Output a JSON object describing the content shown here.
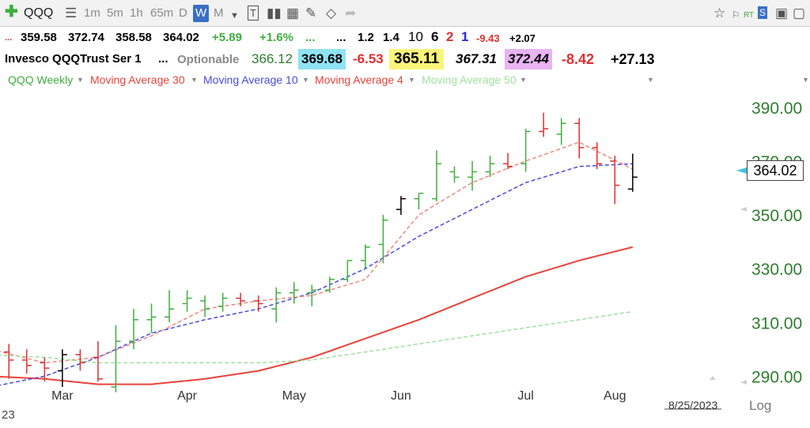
{
  "toolbar": {
    "symbol": "QQQ",
    "timeframes": [
      "1m",
      "5m",
      "1h",
      "65m",
      "D",
      "W",
      "M"
    ],
    "active_timeframe": "W"
  },
  "quote": {
    "dots": "...",
    "open": "359.58",
    "high": "372.74",
    "low": "358.58",
    "close": "364.02",
    "change": "+5.89",
    "change_pct": "+1.6%",
    "ell1": "...",
    "ell2": "...",
    "v1": "1.2",
    "v2": "1.4",
    "v3": "10",
    "v4": "6",
    "v5": "2",
    "v6": "1",
    "v7": "-9.43",
    "v8": "+2.07"
  },
  "row2": {
    "name": "Invesco QQQTrust Ser 1",
    "ell": "...",
    "optionable": "Optionable",
    "p1": "366.12",
    "p2": "369.68",
    "p3": "-6.53",
    "p4": "365.11",
    "p5": "367.31",
    "p6": "372.44",
    "p7": "-8.42",
    "p8": "+27.13"
  },
  "legend": {
    "main": "QQQ Weekly",
    "ma30": "Moving Average 30",
    "ma10": "Moving Average 10",
    "ma4": "Moving Average 4",
    "ma50": "Moving Average 50"
  },
  "colors": {
    "up": "#3fae3f",
    "down": "#e03030",
    "neutral": "#000000",
    "ma30": "#e8433b",
    "ma10": "#4a4adf",
    "ma4": "#ec8a80",
    "ma50": "#9fe09f",
    "axis_text": "#2f7d2f"
  },
  "price_label": "364.02",
  "date_label": "8/25/2023",
  "log_label": "Log",
  "year_label": "23",
  "chart_data": {
    "type": "ohlc",
    "timeframe": "weekly",
    "x_labels": [
      "Mar",
      "Apr",
      "May",
      "Jun",
      "Jul",
      "Aug"
    ],
    "x_label_weeks": [
      3,
      10,
      16,
      22,
      29,
      34
    ],
    "y_ticks": [
      290,
      310,
      330,
      350,
      370,
      390
    ],
    "y_tick_labels": [
      "290.00",
      "310.00",
      "330.00",
      "350.00",
      "370.00",
      "390.00"
    ],
    "ylim": [
      286,
      397
    ],
    "xlim": [
      -0.5,
      41
    ],
    "bars": [
      {
        "w": 0,
        "o": 299,
        "h": 302,
        "l": 289,
        "c": 296,
        "dir": "down"
      },
      {
        "w": 1,
        "o": 296,
        "h": 300,
        "l": 291,
        "c": 294,
        "dir": "down"
      },
      {
        "w": 2,
        "o": 295,
        "h": 297,
        "l": 288,
        "c": 293,
        "dir": "down"
      },
      {
        "w": 3,
        "o": 292,
        "h": 300,
        "l": 286,
        "c": 298,
        "dir": "neutral"
      },
      {
        "w": 4,
        "o": 298,
        "h": 300,
        "l": 292,
        "c": 295,
        "dir": "down"
      },
      {
        "w": 5,
        "o": 297,
        "h": 303,
        "l": 288,
        "c": 289,
        "dir": "down"
      },
      {
        "w": 6,
        "o": 286,
        "h": 309,
        "l": 284,
        "c": 303,
        "dir": "up"
      },
      {
        "w": 7,
        "o": 303,
        "h": 315,
        "l": 300,
        "c": 311,
        "dir": "up"
      },
      {
        "w": 8,
        "o": 311,
        "h": 317,
        "l": 306,
        "c": 312,
        "dir": "up"
      },
      {
        "w": 9,
        "o": 312,
        "h": 322,
        "l": 310,
        "c": 315,
        "dir": "up"
      },
      {
        "w": 10,
        "o": 317,
        "h": 322,
        "l": 314,
        "c": 319,
        "dir": "up"
      },
      {
        "w": 11,
        "o": 318,
        "h": 320,
        "l": 312,
        "c": 315,
        "dir": "up"
      },
      {
        "w": 12,
        "o": 316,
        "h": 321,
        "l": 314,
        "c": 319,
        "dir": "up"
      },
      {
        "w": 13,
        "o": 319,
        "h": 321,
        "l": 316,
        "c": 318,
        "dir": "down"
      },
      {
        "w": 14,
        "o": 318,
        "h": 320,
        "l": 314,
        "c": 317,
        "dir": "down"
      },
      {
        "w": 15,
        "o": 315,
        "h": 323,
        "l": 310,
        "c": 321,
        "dir": "up"
      },
      {
        "w": 16,
        "o": 321,
        "h": 325,
        "l": 317,
        "c": 322,
        "dir": "up"
      },
      {
        "w": 17,
        "o": 321,
        "h": 324,
        "l": 316,
        "c": 322,
        "dir": "up"
      },
      {
        "w": 18,
        "o": 322,
        "h": 327,
        "l": 321,
        "c": 326,
        "dir": "up"
      },
      {
        "w": 19,
        "o": 326,
        "h": 333,
        "l": 325,
        "c": 333,
        "dir": "up"
      },
      {
        "w": 20,
        "o": 333,
        "h": 339,
        "l": 330,
        "c": 338,
        "dir": "up"
      },
      {
        "w": 21,
        "o": 339,
        "h": 350,
        "l": 332,
        "c": 348,
        "dir": "up"
      },
      {
        "w": 22,
        "o": 352,
        "h": 357,
        "l": 350,
        "c": 356,
        "dir": "neutral"
      },
      {
        "w": 23,
        "o": 356,
        "h": 358,
        "l": 352,
        "c": 358,
        "dir": "up"
      },
      {
        "w": 24,
        "o": 356,
        "h": 374,
        "l": 355,
        "c": 369,
        "dir": "up"
      },
      {
        "w": 25,
        "o": 366,
        "h": 368,
        "l": 362,
        "c": 364,
        "dir": "up"
      },
      {
        "w": 26,
        "o": 364,
        "h": 370,
        "l": 359,
        "c": 366,
        "dir": "up"
      },
      {
        "w": 27,
        "o": 366,
        "h": 372,
        "l": 364,
        "c": 369,
        "dir": "up"
      },
      {
        "w": 28,
        "o": 369,
        "h": 373,
        "l": 367,
        "c": 368,
        "dir": "down"
      },
      {
        "w": 29,
        "o": 369,
        "h": 382,
        "l": 366,
        "c": 381,
        "dir": "up"
      },
      {
        "w": 30,
        "o": 381,
        "h": 388,
        "l": 379,
        "c": 382,
        "dir": "down"
      },
      {
        "w": 31,
        "o": 380,
        "h": 386,
        "l": 376,
        "c": 384,
        "dir": "up"
      },
      {
        "w": 32,
        "o": 384,
        "h": 386,
        "l": 371,
        "c": 375,
        "dir": "down"
      },
      {
        "w": 33,
        "o": 375,
        "h": 377,
        "l": 367,
        "c": 369,
        "dir": "down"
      },
      {
        "w": 34,
        "o": 370,
        "h": 372,
        "l": 354,
        "c": 361,
        "dir": "down"
      },
      {
        "w": 35,
        "o": 359.58,
        "h": 372.74,
        "l": 358.58,
        "c": 364.02,
        "dir": "neutral"
      }
    ],
    "series": [
      {
        "name": "Moving Average 30",
        "style": "solid",
        "x": [
          -1,
          2,
          5,
          8,
          11,
          14,
          17,
          20,
          23,
          26,
          29,
          32,
          35
        ],
        "y": [
          290,
          289,
          287,
          287,
          289,
          292,
          297,
          304,
          311,
          319,
          327,
          333,
          338
        ]
      },
      {
        "name": "Moving Average 10",
        "style": "dashed",
        "x": [
          -1,
          2,
          5,
          8,
          11,
          14,
          17,
          20,
          23,
          26,
          29,
          32,
          35
        ],
        "y": [
          286,
          290,
          297,
          306,
          311,
          315,
          321,
          330,
          342,
          352,
          362,
          368,
          369
        ]
      },
      {
        "name": "Moving Average 4",
        "style": "dashed",
        "x": [
          -1,
          2,
          5,
          8,
          11,
          14,
          17,
          20,
          23,
          26,
          29,
          32,
          35
        ],
        "y": [
          300,
          295,
          297,
          305,
          315,
          318,
          320,
          326,
          350,
          362,
          370,
          377,
          367
        ]
      },
      {
        "name": "Moving Average 50",
        "style": "dashed",
        "x": [
          -1,
          2,
          5,
          8,
          11,
          14,
          17,
          20,
          23,
          26,
          29,
          32,
          35
        ],
        "y": [
          298,
          297,
          295,
          295,
          295,
          295,
          296,
          299,
          302,
          305,
          308,
          311,
          314
        ]
      }
    ],
    "grid": false,
    "legend": "top-left"
  }
}
